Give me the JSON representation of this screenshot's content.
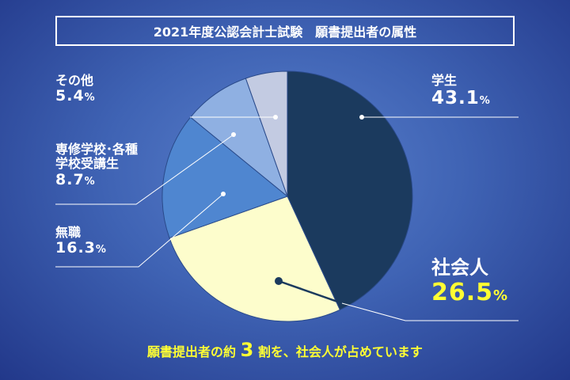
{
  "chart_data": {
    "type": "pie",
    "title": "2021年度公認会計士試験　願書提出者の属性",
    "start": "top",
    "direction": "clockwise",
    "slices": [
      {
        "name": "学生",
        "value": 43.1,
        "value_label": "43.1",
        "color": "#1b3a5e"
      },
      {
        "name": "社会人",
        "value": 26.5,
        "value_label": "26.5",
        "color": "#fdfdcc"
      },
      {
        "name": "無職",
        "value": 16.3,
        "value_label": "16.3",
        "color": "#4f86d0"
      },
      {
        "name": "専修学校・各種学校受講生",
        "name_line1": "専修学校･各種",
        "name_line2": "学校受講生",
        "value": 8.7,
        "value_label": "8.7",
        "color": "#8fb0e2"
      },
      {
        "name": "その他",
        "value": 5.4,
        "value_label": "5.4",
        "color": "#c3cbe2"
      }
    ],
    "unit": "%"
  },
  "footer": {
    "pre": "願書提出者の約",
    "num": "3",
    "post": "割を、社会人が占めています"
  }
}
